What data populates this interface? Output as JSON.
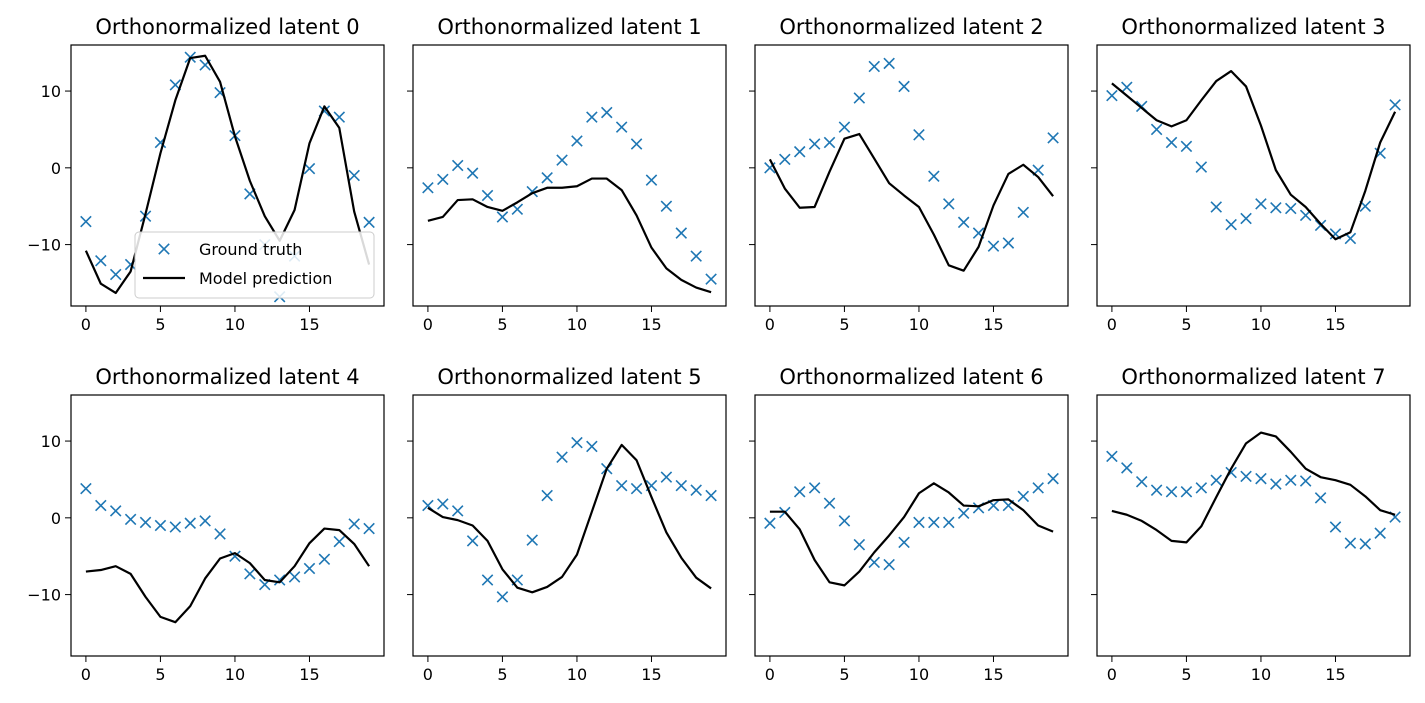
{
  "figure": {
    "legend": {
      "placement": "lower-right of first panel",
      "entries": [
        {
          "label": "Ground truth",
          "marker": "x",
          "color": "#1f77b4"
        },
        {
          "label": "Model prediction",
          "line": "solid",
          "color": "#000000"
        }
      ]
    },
    "colors": {
      "ground_truth": "#1f77b4",
      "prediction": "#000000"
    }
  },
  "chart_data": [
    {
      "type": "line",
      "title": "Orthonormalized latent 0",
      "xlabel": "",
      "ylabel": "",
      "xlim": [
        -1,
        20
      ],
      "ylim": [
        -18,
        16
      ],
      "xticks": [
        0,
        5,
        10,
        15
      ],
      "yticks": [
        10,
        0,
        -10
      ],
      "show_yticklabels": true,
      "grid": false,
      "x": [
        0,
        1,
        2,
        3,
        4,
        5,
        6,
        7,
        8,
        9,
        10,
        11,
        12,
        13,
        14,
        15,
        16,
        17,
        18,
        19
      ],
      "series": [
        {
          "name": "Ground truth",
          "style": "markers-x",
          "values": [
            -7,
            -12.1,
            -13.9,
            -12.6,
            -6.3,
            3.3,
            10.8,
            14.4,
            13.4,
            9.8,
            4.2,
            -3.4,
            -10,
            -16.8,
            -11.5,
            -0.1,
            7.4,
            6.6,
            -1,
            -7.1
          ]
        },
        {
          "name": "Model prediction",
          "style": "line",
          "values": [
            -10.8,
            -15.1,
            -16.3,
            -13.5,
            -6,
            1.9,
            8.8,
            14.3,
            14.6,
            11.2,
            4.1,
            -1.7,
            -6.3,
            -9.5,
            -5.5,
            3.2,
            8,
            5.2,
            -5.7,
            -12.6
          ]
        }
      ]
    },
    {
      "type": "line",
      "title": "Orthonormalized latent 1",
      "xlabel": "",
      "ylabel": "",
      "xlim": [
        -1,
        20
      ],
      "ylim": [
        -18,
        16
      ],
      "xticks": [
        0,
        5,
        10,
        15
      ],
      "yticks": [
        10,
        0,
        -10
      ],
      "show_yticklabels": false,
      "grid": false,
      "x": [
        0,
        1,
        2,
        3,
        4,
        5,
        6,
        7,
        8,
        9,
        10,
        11,
        12,
        13,
        14,
        15,
        16,
        17,
        18,
        19
      ],
      "series": [
        {
          "name": "Ground truth",
          "style": "markers-x",
          "values": [
            -2.6,
            -1.5,
            0.3,
            -0.7,
            -3.6,
            -6.4,
            -5.4,
            -3.1,
            -1.3,
            1,
            3.5,
            6.6,
            7.2,
            5.3,
            3.1,
            -1.6,
            -5,
            -8.5,
            -11.5,
            -14.5
          ]
        },
        {
          "name": "Model prediction",
          "style": "line",
          "values": [
            -6.9,
            -6.4,
            -4.2,
            -4.1,
            -5.1,
            -5.6,
            -4.5,
            -3.3,
            -2.6,
            -2.6,
            -2.4,
            -1.4,
            -1.4,
            -2.9,
            -6.2,
            -10.4,
            -13.1,
            -14.6,
            -15.6,
            -16.2
          ]
        }
      ]
    },
    {
      "type": "line",
      "title": "Orthonormalized latent 2",
      "xlabel": "",
      "ylabel": "",
      "xlim": [
        -1,
        20
      ],
      "ylim": [
        -18,
        16
      ],
      "xticks": [
        0,
        5,
        10,
        15
      ],
      "yticks": [
        10,
        0,
        -10
      ],
      "show_yticklabels": false,
      "grid": false,
      "x": [
        0,
        1,
        2,
        3,
        4,
        5,
        6,
        7,
        8,
        9,
        10,
        11,
        12,
        13,
        14,
        15,
        16,
        17,
        18,
        19
      ],
      "series": [
        {
          "name": "Ground truth",
          "style": "markers-x",
          "values": [
            0,
            1.1,
            2.1,
            3.1,
            3.3,
            5.3,
            9.1,
            13.2,
            13.6,
            10.6,
            4.3,
            -1.1,
            -4.7,
            -7.1,
            -8.5,
            -10.2,
            -9.8,
            -5.8,
            -0.3,
            3.9
          ]
        },
        {
          "name": "Model prediction",
          "style": "line",
          "values": [
            1.1,
            -2.7,
            -5.2,
            -5.1,
            -0.5,
            3.8,
            4.4,
            1.2,
            -2,
            -3.6,
            -5.1,
            -8.7,
            -12.7,
            -13.4,
            -10.3,
            -4.9,
            -0.8,
            0.4,
            -1.2,
            -3.7
          ]
        }
      ]
    },
    {
      "type": "line",
      "title": "Orthonormalized latent 3",
      "xlabel": "",
      "ylabel": "",
      "xlim": [
        -1,
        20
      ],
      "ylim": [
        -18,
        16
      ],
      "xticks": [
        0,
        5,
        10,
        15
      ],
      "yticks": [
        10,
        0,
        -10
      ],
      "show_yticklabels": false,
      "grid": false,
      "x": [
        0,
        1,
        2,
        3,
        4,
        5,
        6,
        7,
        8,
        9,
        10,
        11,
        12,
        13,
        14,
        15,
        16,
        17,
        18,
        19
      ],
      "series": [
        {
          "name": "Ground truth",
          "style": "markers-x",
          "values": [
            9.4,
            10.5,
            8,
            5,
            3.3,
            2.8,
            0.1,
            -5.1,
            -7.4,
            -6.6,
            -4.7,
            -5.2,
            -5.3,
            -6.2,
            -7.5,
            -8.6,
            -9.2,
            -5,
            1.9,
            8.2
          ]
        },
        {
          "name": "Model prediction",
          "style": "line",
          "values": [
            11,
            9.4,
            7.8,
            6.2,
            5.4,
            6.2,
            8.8,
            11.3,
            12.6,
            10.6,
            5.5,
            -0.3,
            -3.5,
            -5.1,
            -7.3,
            -9.3,
            -8.4,
            -3,
            3.3,
            7.3
          ]
        }
      ]
    },
    {
      "type": "line",
      "title": "Orthonormalized latent 4",
      "xlabel": "",
      "ylabel": "",
      "xlim": [
        -1,
        20
      ],
      "ylim": [
        -18,
        16
      ],
      "xticks": [
        0,
        5,
        10,
        15
      ],
      "yticks": [
        10,
        0,
        -10
      ],
      "show_yticklabels": true,
      "grid": false,
      "x": [
        0,
        1,
        2,
        3,
        4,
        5,
        6,
        7,
        8,
        9,
        10,
        11,
        12,
        13,
        14,
        15,
        16,
        17,
        18,
        19
      ],
      "series": [
        {
          "name": "Ground truth",
          "style": "markers-x",
          "values": [
            3.8,
            1.6,
            0.9,
            -0.2,
            -0.6,
            -1,
            -1.2,
            -0.7,
            -0.4,
            -2.1,
            -5,
            -7.3,
            -8.7,
            -8.1,
            -7.7,
            -6.6,
            -5.4,
            -3.1,
            -0.8,
            -1.4
          ]
        },
        {
          "name": "Model prediction",
          "style": "line",
          "values": [
            -7,
            -6.8,
            -6.3,
            -7.3,
            -10.3,
            -12.9,
            -13.6,
            -11.5,
            -7.9,
            -5.3,
            -4.6,
            -5.9,
            -8.1,
            -8.4,
            -6.3,
            -3.3,
            -1.4,
            -1.6,
            -3.4,
            -6.3
          ]
        }
      ]
    },
    {
      "type": "line",
      "title": "Orthonormalized latent 5",
      "xlabel": "",
      "ylabel": "",
      "xlim": [
        -1,
        20
      ],
      "ylim": [
        -18,
        16
      ],
      "xticks": [
        0,
        5,
        10,
        15
      ],
      "yticks": [
        10,
        0,
        -10
      ],
      "show_yticklabels": false,
      "grid": false,
      "x": [
        0,
        1,
        2,
        3,
        4,
        5,
        6,
        7,
        8,
        9,
        10,
        11,
        12,
        13,
        14,
        15,
        16,
        17,
        18,
        19
      ],
      "series": [
        {
          "name": "Ground truth",
          "style": "markers-x",
          "values": [
            1.6,
            1.8,
            0.9,
            -3,
            -8.1,
            -10.3,
            -8.1,
            -2.9,
            2.9,
            7.9,
            9.8,
            9.3,
            6.4,
            4.2,
            3.8,
            4.2,
            5.3,
            4.2,
            3.6,
            2.9
          ]
        },
        {
          "name": "Model prediction",
          "style": "line",
          "values": [
            1.3,
            0.1,
            -0.3,
            -1,
            -3,
            -6.7,
            -9.1,
            -9.7,
            -9,
            -7.7,
            -4.8,
            0.8,
            6.4,
            9.5,
            7.5,
            2.7,
            -1.9,
            -5.2,
            -7.8,
            -9.2
          ]
        }
      ]
    },
    {
      "type": "line",
      "title": "Orthonormalized latent 6",
      "xlabel": "",
      "ylabel": "",
      "xlim": [
        -1,
        20
      ],
      "ylim": [
        -18,
        16
      ],
      "xticks": [
        0,
        5,
        10,
        15
      ],
      "yticks": [
        10,
        0,
        -10
      ],
      "show_yticklabels": false,
      "grid": false,
      "x": [
        0,
        1,
        2,
        3,
        4,
        5,
        6,
        7,
        8,
        9,
        10,
        11,
        12,
        13,
        14,
        15,
        16,
        17,
        18,
        19
      ],
      "series": [
        {
          "name": "Ground truth",
          "style": "markers-x",
          "values": [
            -0.7,
            0.7,
            3.4,
            3.9,
            1.9,
            -0.4,
            -3.5,
            -5.8,
            -6.1,
            -3.2,
            -0.6,
            -0.6,
            -0.6,
            0.6,
            1.3,
            1.6,
            1.6,
            2.8,
            3.9,
            5.1
          ]
        },
        {
          "name": "Model prediction",
          "style": "line",
          "values": [
            0.8,
            0.8,
            -1.5,
            -5.5,
            -8.4,
            -8.8,
            -7,
            -4.5,
            -2.3,
            0.1,
            3.2,
            4.5,
            3.3,
            1.6,
            1.5,
            2.3,
            2.4,
            1,
            -1,
            -1.8
          ]
        }
      ]
    },
    {
      "type": "line",
      "title": "Orthonormalized latent 7",
      "xlabel": "",
      "ylabel": "",
      "xlim": [
        -1,
        20
      ],
      "ylim": [
        -18,
        16
      ],
      "xticks": [
        0,
        5,
        10,
        15
      ],
      "yticks": [
        10,
        0,
        -10
      ],
      "show_yticklabels": false,
      "grid": false,
      "x": [
        0,
        1,
        2,
        3,
        4,
        5,
        6,
        7,
        8,
        9,
        10,
        11,
        12,
        13,
        14,
        15,
        16,
        17,
        18,
        19
      ],
      "series": [
        {
          "name": "Ground truth",
          "style": "markers-x",
          "values": [
            8,
            6.5,
            4.7,
            3.6,
            3.4,
            3.4,
            3.9,
            4.9,
            5.9,
            5.4,
            5.1,
            4.4,
            4.9,
            4.8,
            2.6,
            -1.2,
            -3.3,
            -3.4,
            -2,
            0.1
          ]
        },
        {
          "name": "Model prediction",
          "style": "line",
          "values": [
            0.9,
            0.4,
            -0.4,
            -1.6,
            -3,
            -3.2,
            -1.1,
            2.7,
            6.4,
            9.7,
            11.1,
            10.6,
            8.6,
            6.4,
            5.3,
            4.9,
            4.3,
            2.8,
            1,
            0.4
          ]
        }
      ]
    }
  ]
}
